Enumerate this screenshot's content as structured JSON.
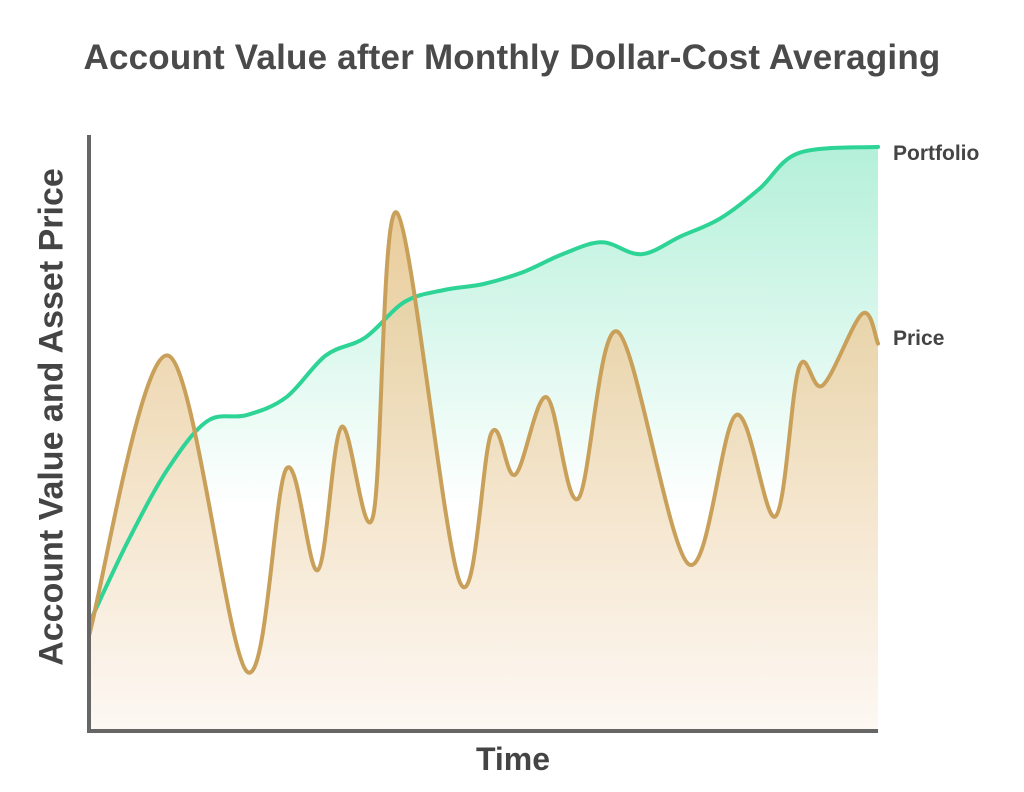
{
  "chart_data": {
    "type": "line",
    "title": "Account Value after Monthly Dollar-Cost Averaging",
    "xlabel": "Time",
    "ylabel": "Account Value and Asset Price",
    "ylim": [
      0,
      100
    ],
    "grid": false,
    "axis_ticks": false,
    "series": [
      {
        "name": "Portfolio",
        "color": "#2ed396",
        "fill_top": "#b4f0da",
        "fill_bottom": "#ffffff",
        "points": [
          [
            0,
            18
          ],
          [
            5,
            32
          ],
          [
            10,
            44
          ],
          [
            15,
            52
          ],
          [
            20,
            53
          ],
          [
            25,
            56
          ],
          [
            30,
            63
          ],
          [
            35,
            66
          ],
          [
            40,
            72
          ],
          [
            45,
            74
          ],
          [
            50,
            75
          ],
          [
            55,
            77
          ],
          [
            60,
            80
          ],
          [
            65,
            82
          ],
          [
            70,
            80
          ],
          [
            75,
            83
          ],
          [
            80,
            86
          ],
          [
            85,
            91
          ],
          [
            90,
            97
          ],
          [
            100,
            98
          ]
        ]
      },
      {
        "name": "Price",
        "color": "#c9a05a",
        "fill_top": "#e6c68e",
        "fill_bottom": "#fdf7f2",
        "points": [
          [
            0,
            16
          ],
          [
            10,
            63
          ],
          [
            20,
            10
          ],
          [
            25,
            44
          ],
          [
            29,
            27
          ],
          [
            32,
            51
          ],
          [
            36,
            36
          ],
          [
            39,
            87
          ],
          [
            47,
            25
          ],
          [
            51,
            50
          ],
          [
            54,
            43
          ],
          [
            58,
            56
          ],
          [
            62,
            39
          ],
          [
            67,
            67
          ],
          [
            76,
            28
          ],
          [
            82,
            53
          ],
          [
            87,
            36
          ],
          [
            90,
            61
          ],
          [
            93,
            58
          ],
          [
            98,
            70
          ],
          [
            100,
            65
          ]
        ]
      }
    ]
  }
}
